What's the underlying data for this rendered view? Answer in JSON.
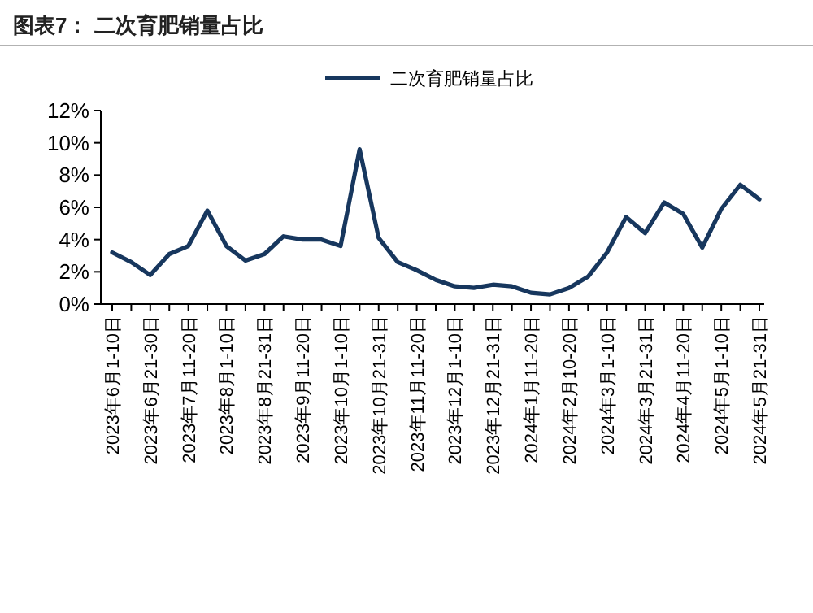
{
  "chart_data": {
    "type": "line",
    "title": "图表7：  二次育肥销量占比",
    "categories": [
      "2023年6月1-10日",
      null,
      "2023年6月21-30日",
      null,
      "2023年7月11-20日",
      null,
      "2023年8月1-10日",
      null,
      "2023年8月21-31日",
      null,
      "2023年9月11-20日",
      null,
      "2023年10月1-10日",
      null,
      "2023年10月21-31日",
      null,
      "2023年11月11-20日",
      null,
      "2023年12月1-10日",
      null,
      "2023年12月21-31日",
      null,
      "2024年1月11-20日",
      null,
      "2024年2月10-20日",
      null,
      "2024年3月1-10日",
      null,
      "2024年3月21-31日",
      null,
      "2024年4月11-20日",
      null,
      "2024年5月1-10日",
      null,
      "2024年5月21-31日"
    ],
    "series": [
      {
        "name": "二次育肥销量占比",
        "color": "#17375e",
        "values": [
          3.2,
          2.6,
          1.8,
          3.1,
          3.6,
          5.8,
          3.6,
          2.7,
          3.1,
          4.2,
          4.0,
          4.0,
          3.6,
          9.6,
          4.1,
          2.6,
          2.1,
          1.5,
          1.1,
          1.0,
          1.2,
          1.1,
          0.7,
          0.6,
          1.0,
          1.7,
          3.2,
          5.4,
          4.4,
          6.3,
          5.6,
          3.5,
          5.9,
          7.4,
          6.5
        ]
      }
    ],
    "ylim": [
      0,
      12
    ],
    "yticks": [
      {
        "value": 0,
        "label": "0%"
      },
      {
        "value": 2,
        "label": "2%"
      },
      {
        "value": 4,
        "label": "4%"
      },
      {
        "value": 6,
        "label": "6%"
      },
      {
        "value": 8,
        "label": "8%"
      },
      {
        "value": 10,
        "label": "10%"
      },
      {
        "value": 12,
        "label": "12%"
      }
    ],
    "legend": "top"
  }
}
